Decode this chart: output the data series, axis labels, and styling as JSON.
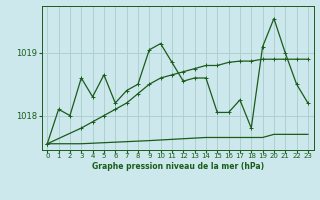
{
  "title": "Graphe pression niveau de la mer (hPa)",
  "background_color": "#cce8ec",
  "grid_color": "#aacccc",
  "line_color": "#1a5c1a",
  "xlim": [
    -0.5,
    23.5
  ],
  "ylim": [
    1017.45,
    1019.75
  ],
  "yticks": [
    1018,
    1019
  ],
  "xticks": [
    0,
    1,
    2,
    3,
    4,
    5,
    6,
    7,
    8,
    9,
    10,
    11,
    12,
    13,
    14,
    15,
    16,
    17,
    18,
    19,
    20,
    21,
    22,
    23
  ],
  "series_jagged": {
    "x": [
      0,
      1,
      2,
      3,
      4,
      5,
      6,
      7,
      8,
      9,
      10,
      11,
      12,
      13,
      14,
      15,
      16,
      17,
      18,
      19,
      20,
      21,
      22,
      23
    ],
    "y": [
      1017.55,
      1018.1,
      1018.0,
      1018.6,
      1018.3,
      1018.65,
      1018.2,
      1018.4,
      1018.5,
      1019.05,
      1019.15,
      1018.85,
      1018.55,
      1018.6,
      1018.6,
      1018.05,
      1018.05,
      1018.25,
      1017.8,
      1019.1,
      1019.55,
      1019.0,
      1018.5,
      1018.2
    ]
  },
  "series_diagonal": {
    "x": [
      0,
      3,
      4,
      5,
      6,
      7,
      8,
      9,
      10,
      11,
      12,
      13,
      14,
      15,
      16,
      17,
      18,
      19,
      20,
      21,
      22,
      23
    ],
    "y": [
      1017.55,
      1017.8,
      1017.9,
      1018.0,
      1018.1,
      1018.2,
      1018.35,
      1018.5,
      1018.6,
      1018.65,
      1018.7,
      1018.75,
      1018.8,
      1018.8,
      1018.85,
      1018.87,
      1018.87,
      1018.9,
      1018.9,
      1018.9,
      1018.9,
      1018.9
    ]
  },
  "series_flat": {
    "x": [
      0,
      3,
      9,
      14,
      17,
      18,
      19,
      20,
      21,
      22,
      23
    ],
    "y": [
      1017.55,
      1017.55,
      1017.6,
      1017.65,
      1017.65,
      1017.65,
      1017.65,
      1017.7,
      1017.7,
      1017.7,
      1017.7
    ]
  }
}
